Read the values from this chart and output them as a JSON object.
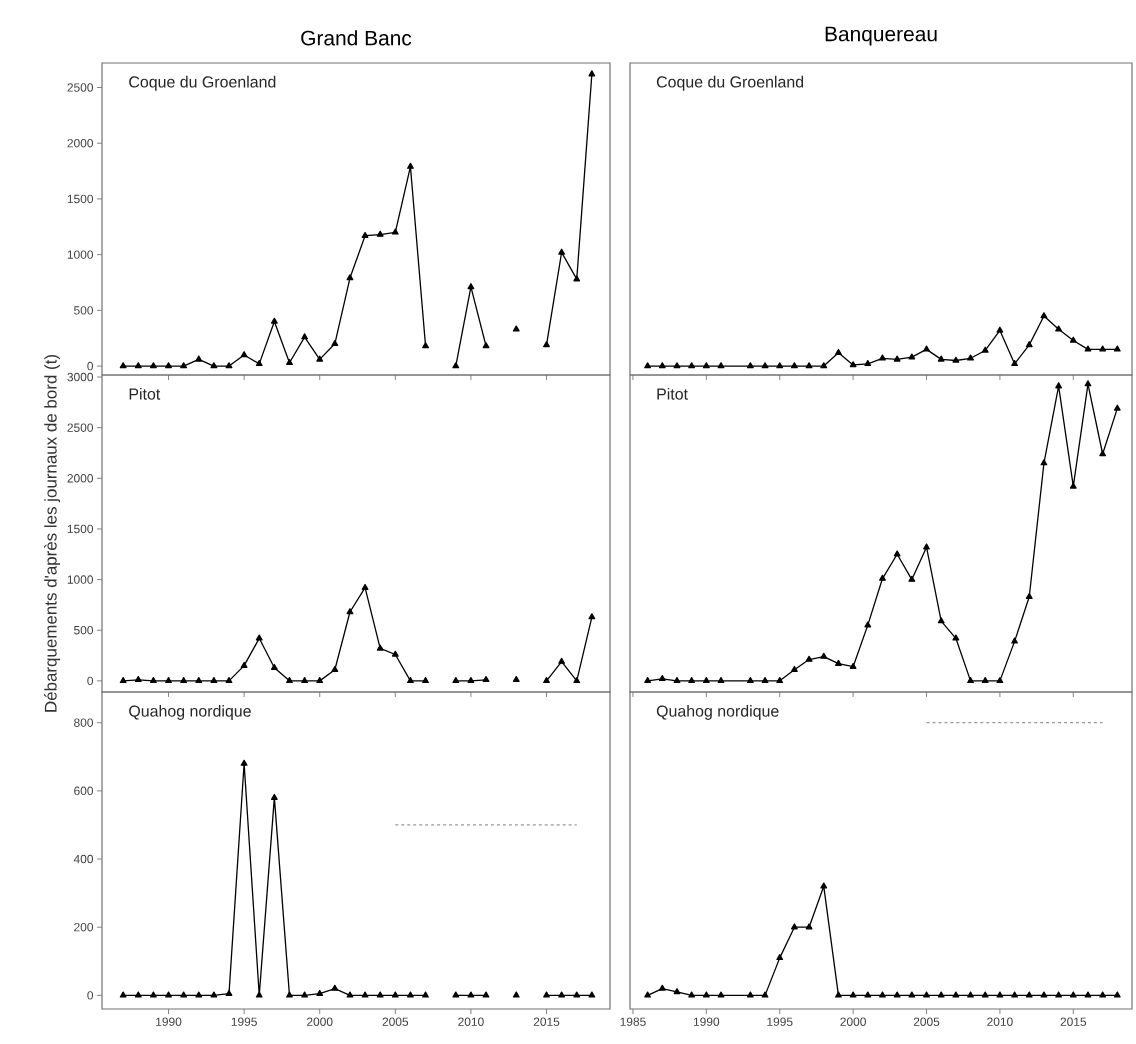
{
  "chart_data": [
    {
      "type": "line",
      "title": "Grand Banc",
      "subtitle": "Coque du Groenland",
      "marker": "triangle",
      "line_style": "solid",
      "tick_labels": "y",
      "xlim": [
        1985.6,
        2019.2
      ],
      "ylim": [
        -80,
        2720
      ],
      "xticks": [
        1990,
        1995,
        2000,
        2005,
        2010,
        2015
      ],
      "yticks": [
        0,
        500,
        1000,
        1500,
        2000,
        2500
      ],
      "series": [
        {
          "color": "#000000",
          "x": [
            1987,
            1988,
            1989,
            1990,
            1991,
            1992,
            1993,
            1994,
            1995,
            1996,
            1997,
            1998,
            1999,
            2000,
            2001,
            2002,
            2003,
            2004,
            2005,
            2006,
            2007,
            2008,
            2009,
            2010,
            2011,
            2012,
            2013,
            2014,
            2015,
            2016,
            2017,
            2018
          ],
          "values": [
            0,
            0,
            0,
            0,
            0,
            60,
            0,
            0,
            100,
            20,
            400,
            30,
            260,
            60,
            200,
            790,
            1170,
            1180,
            1200,
            1790,
            180,
            null,
            0,
            710,
            180,
            null,
            330,
            null,
            190,
            1020,
            780,
            2620
          ]
        }
      ]
    },
    {
      "type": "line",
      "title": "Banquereau",
      "subtitle": "Coque du Groenland",
      "marker": "triangle",
      "line_style": "solid",
      "tick_labels": false,
      "xlim": [
        1984.8,
        2019
      ],
      "ylim": [
        -80,
        2720
      ],
      "xticks": [
        1985,
        1990,
        1995,
        2000,
        2005,
        2010,
        2015
      ],
      "series": [
        {
          "color": "#000000",
          "x": [
            1986,
            1987,
            1988,
            1989,
            1990,
            1991,
            1993,
            1994,
            1995,
            1996,
            1997,
            1998,
            1999,
            2000,
            2001,
            2002,
            2003,
            2004,
            2005,
            2006,
            2007,
            2008,
            2009,
            2010,
            2011,
            2012,
            2013,
            2014,
            2015,
            2016,
            2017,
            2018
          ],
          "values": [
            0,
            0,
            0,
            0,
            0,
            0,
            0,
            0,
            0,
            0,
            0,
            0,
            120,
            10,
            20,
            70,
            60,
            80,
            150,
            60,
            50,
            70,
            140,
            320,
            20,
            190,
            450,
            330,
            230,
            150,
            150,
            150
          ]
        }
      ]
    },
    {
      "type": "line",
      "subtitle": "Pitot",
      "ylabel": "Débarquements d'après les journaux de bord (t)",
      "marker": "triangle",
      "line_style": "solid",
      "tick_labels": "y",
      "xlim": [
        1985.6,
        2019.2
      ],
      "ylim": [
        -110,
        3020
      ],
      "xticks": [
        1990,
        1995,
        2000,
        2005,
        2010,
        2015
      ],
      "yticks": [
        0,
        500,
        1000,
        1500,
        2000,
        2500,
        3000
      ],
      "series": [
        {
          "color": "#000000",
          "x": [
            1987,
            1988,
            1989,
            1990,
            1991,
            1992,
            1993,
            1994,
            1995,
            1996,
            1997,
            1998,
            1999,
            2000,
            2001,
            2002,
            2003,
            2004,
            2005,
            2006,
            2007,
            2008,
            2009,
            2010,
            2011,
            2012,
            2013,
            2014,
            2015,
            2016,
            2017,
            2018
          ],
          "values": [
            0,
            10,
            0,
            0,
            0,
            0,
            0,
            0,
            150,
            420,
            130,
            0,
            0,
            0,
            110,
            680,
            920,
            320,
            260,
            0,
            0,
            null,
            0,
            0,
            10,
            null,
            10,
            null,
            0,
            190,
            0,
            630
          ]
        }
      ]
    },
    {
      "type": "line",
      "subtitle": "Pitot",
      "marker": "triangle",
      "line_style": "solid",
      "tick_labels": false,
      "xlim": [
        1984.8,
        2019
      ],
      "ylim": [
        -110,
        3020
      ],
      "xticks": [
        1985,
        1990,
        1995,
        2000,
        2005,
        2010,
        2015
      ],
      "series": [
        {
          "color": "#000000",
          "x": [
            1986,
            1987,
            1988,
            1989,
            1990,
            1991,
            1993,
            1994,
            1995,
            1996,
            1997,
            1998,
            1999,
            2000,
            2001,
            2002,
            2003,
            2004,
            2005,
            2006,
            2007,
            2008,
            2009,
            2010,
            2011,
            2012,
            2013,
            2014,
            2015,
            2016,
            2017,
            2018
          ],
          "values": [
            0,
            20,
            0,
            0,
            0,
            0,
            0,
            0,
            0,
            110,
            210,
            240,
            170,
            140,
            550,
            1010,
            1250,
            1000,
            1320,
            590,
            420,
            0,
            0,
            0,
            390,
            830,
            2150,
            2910,
            1920,
            2930,
            2240,
            2690
          ]
        }
      ]
    },
    {
      "type": "line",
      "subtitle": "Quahog nordique",
      "marker": "triangle",
      "line_style": "solid",
      "xlim": [
        1985.6,
        2019.2
      ],
      "ylim": [
        -40,
        890
      ],
      "xticks": [
        1990,
        1995,
        2000,
        2005,
        2010,
        2015
      ],
      "yticks": [
        0,
        200,
        400,
        600,
        800
      ],
      "series": [
        {
          "type": "line",
          "color": "#999999",
          "line_style": "dashed",
          "marker": "none",
          "x": [
            2005,
            2017
          ],
          "values": [
            500,
            500
          ]
        },
        {
          "color": "#000000",
          "x": [
            1987,
            1988,
            1989,
            1990,
            1991,
            1992,
            1993,
            1994,
            1995,
            1996,
            1997,
            1998,
            1999,
            2000,
            2001,
            2002,
            2003,
            2004,
            2005,
            2006,
            2007,
            2008,
            2009,
            2010,
            2011,
            2012,
            2013,
            2014,
            2015,
            2016,
            2017,
            2018
          ],
          "values": [
            0,
            0,
            0,
            0,
            0,
            0,
            0,
            5,
            680,
            0,
            580,
            0,
            0,
            5,
            20,
            0,
            0,
            0,
            0,
            0,
            0,
            null,
            0,
            0,
            0,
            null,
            0,
            null,
            0,
            0,
            0,
            0
          ]
        }
      ]
    },
    {
      "type": "line",
      "subtitle": "Quahog nordique",
      "marker": "triangle",
      "line_style": "solid",
      "tick_labels": "x",
      "xlim": [
        1984.8,
        2019
      ],
      "ylim": [
        -40,
        890
      ],
      "xticks": [
        1985,
        1990,
        1995,
        2000,
        2005,
        2010,
        2015
      ],
      "series": [
        {
          "type": "line",
          "color": "#999999",
          "line_style": "dashed",
          "marker": "none",
          "x": [
            2005,
            2017
          ],
          "values": [
            800,
            800
          ]
        },
        {
          "color": "#000000",
          "x": [
            1986,
            1987,
            1988,
            1989,
            1990,
            1991,
            1993,
            1994,
            1995,
            1996,
            1997,
            1998,
            1999,
            2000,
            2001,
            2002,
            2003,
            2004,
            2005,
            2006,
            2007,
            2008,
            2009,
            2010,
            2011,
            2012,
            2013,
            2014,
            2015,
            2016,
            2017,
            2018
          ],
          "values": [
            0,
            20,
            10,
            0,
            0,
            0,
            0,
            0,
            110,
            200,
            200,
            320,
            0,
            0,
            0,
            0,
            0,
            0,
            0,
            0,
            0,
            0,
            0,
            0,
            0,
            0,
            0,
            0,
            0,
            0,
            0,
            0
          ]
        }
      ]
    }
  ]
}
